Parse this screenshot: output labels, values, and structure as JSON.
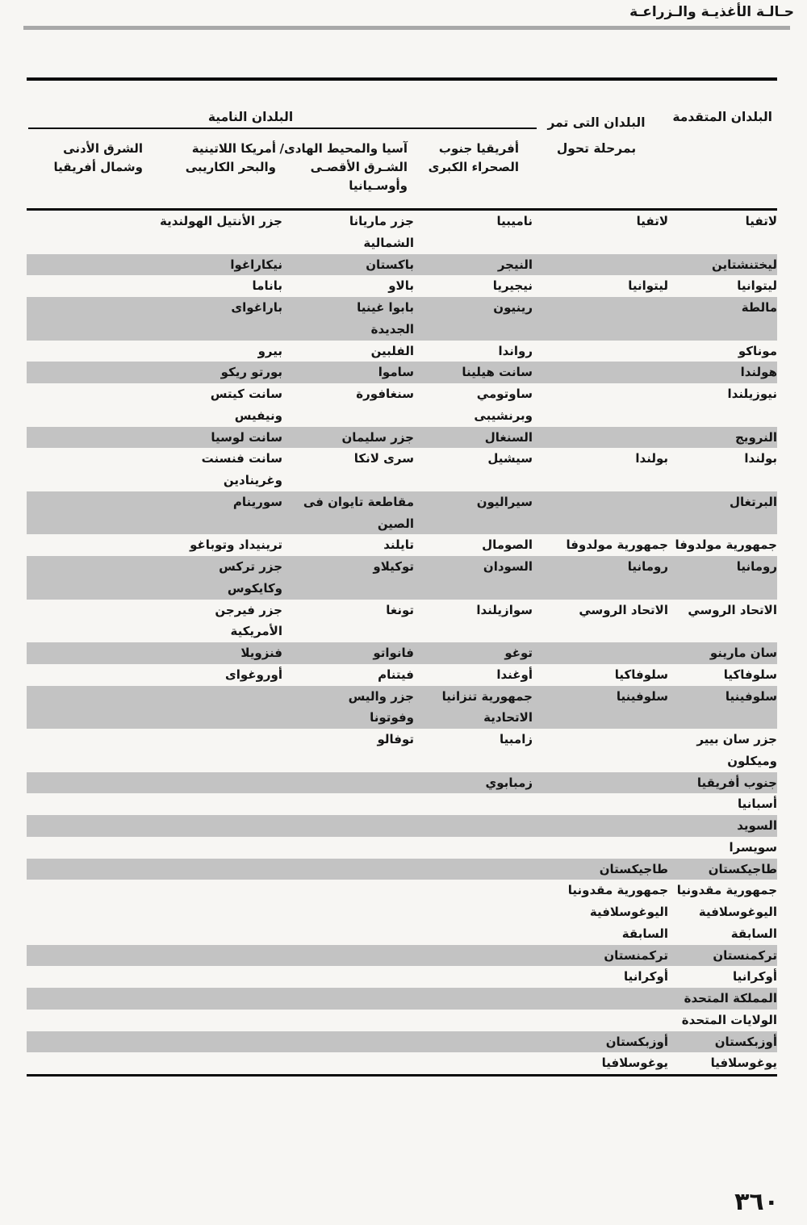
{
  "page": {
    "header_title": "حـالـة الأغذيـة والـزراعـة",
    "page_number": "٣٦٠"
  },
  "table": {
    "col_developed": "البلدان المتقدمة",
    "col_transition": "البلدان التى تمر\nبمرحلة تحول",
    "group_developing": "البلدان النامية",
    "sub_africa": "أفريقيا جنوب\nالصحراء الكبرى",
    "sub_asia": "آسيا والمحيط الهادى/\nالشـرق الأقصـى\nوأوسـيانيا",
    "sub_latam": "أمريكا اللاتينية\nوالبحر الكاريبى",
    "sub_neareast": "الشرق الأدنى\nوشمال أفريقيا",
    "rows": [
      {
        "developed": "لاتفيا",
        "transition": "لاتفيا",
        "africa": "ناميبيا",
        "asia": "جزر ماريانا\nالشمالية",
        "latam": "جزر الأنتيل الهولندية",
        "neareast": ""
      },
      {
        "developed": "ليختنشتاين",
        "transition": "",
        "africa": "النيجر",
        "asia": "باكستان",
        "latam": "نيكاراغوا",
        "neareast": ""
      },
      {
        "developed": "ليتوانيا",
        "transition": "ليتوانيا",
        "africa": "نيجيريا",
        "asia": "بالاو",
        "latam": "باناما",
        "neareast": ""
      },
      {
        "developed": "مالطة",
        "transition": "",
        "africa": "رينيون",
        "asia": "بابوا غينيا\nالجديدة",
        "latam": "باراغواى",
        "neareast": ""
      },
      {
        "developed": "موناكو",
        "transition": "",
        "africa": "رواندا",
        "asia": "الفلبين",
        "latam": "بيرو",
        "neareast": ""
      },
      {
        "developed": "هولندا",
        "transition": "",
        "africa": "سانت هيلينا",
        "asia": "ساموا",
        "latam": "بورتو ريكو",
        "neareast": ""
      },
      {
        "developed": "نيوزيلندا",
        "transition": "",
        "africa": "ساوتومي\nوبرنشيبى",
        "asia": "سنغافورة",
        "latam": "سانت كيتس\nونيفيس",
        "neareast": ""
      },
      {
        "developed": "النرويج",
        "transition": "",
        "africa": "السنغال",
        "asia": "جزر سليمان",
        "latam": "سانت لوسيا",
        "neareast": ""
      },
      {
        "developed": "بولندا",
        "transition": "بولندا",
        "africa": "سيشيل",
        "asia": "سرى لانكا",
        "latam": "سانت فنسنت\nوغرينادين",
        "neareast": ""
      },
      {
        "developed": "البرتغال",
        "transition": "",
        "africa": "سيراليون",
        "asia": "مقاطعة تايوان فى\nالصين",
        "latam": "سورينام",
        "neareast": ""
      },
      {
        "developed": "جمهورية مولدوفا",
        "transition": "جمهورية مولدوفا",
        "africa": "الصومال",
        "asia": "تايلند",
        "latam": "ترينيداد وتوباغو",
        "neareast": ""
      },
      {
        "developed": "رومانيا",
        "transition": "رومانيا",
        "africa": "السودان",
        "asia": "توكيلاو",
        "latam": "جزر تركس\nوكايكوس",
        "neareast": ""
      },
      {
        "developed": "الاتحاد الروسي",
        "transition": "الاتحاد الروسي",
        "africa": "سوازيلندا",
        "asia": "تونغا",
        "latam": "جزر فيرجن\nالأمريكية",
        "neareast": ""
      },
      {
        "developed": "سان مارينو",
        "transition": "",
        "africa": "توغو",
        "asia": "فانواتو",
        "latam": "فنزويلا",
        "neareast": ""
      },
      {
        "developed": "سلوفاكيا",
        "transition": "سلوفاكيا",
        "africa": "أوغندا",
        "asia": "فيتنام",
        "latam": "أوروغواى",
        "neareast": ""
      },
      {
        "developed": "سلوفينيا",
        "transition": "سلوفينيا",
        "africa": "جمهورية تنزانيا\nالاتحادية",
        "asia": "جزر واليس\nوفوتونا",
        "latam": "",
        "neareast": ""
      },
      {
        "developed": "جزر سان بيير\nوميكلون",
        "transition": "",
        "africa": "زامبيا",
        "asia": "توفالو",
        "latam": "",
        "neareast": ""
      },
      {
        "developed": "جنوب أفريقيا",
        "transition": "",
        "africa": "زمبابوي",
        "asia": "",
        "latam": "",
        "neareast": ""
      },
      {
        "developed": "أسبانيا",
        "transition": "",
        "africa": "",
        "asia": "",
        "latam": "",
        "neareast": ""
      },
      {
        "developed": "السويد",
        "transition": "",
        "africa": "",
        "asia": "",
        "latam": "",
        "neareast": ""
      },
      {
        "developed": "سويسرا",
        "transition": "",
        "africa": "",
        "asia": "",
        "latam": "",
        "neareast": ""
      },
      {
        "developed": "طاجيكستان",
        "transition": "طاجيكستان",
        "africa": "",
        "asia": "",
        "latam": "",
        "neareast": ""
      },
      {
        "developed": "جمهورية مقدونيا\nاليوغوسلافية\nالسابقة",
        "transition": "جمهورية مقدونيا\nاليوغوسلافية\nالسابقة",
        "africa": "",
        "asia": "",
        "latam": "",
        "neareast": ""
      },
      {
        "developed": "تركمنستان",
        "transition": "تركمنستان",
        "africa": "",
        "asia": "",
        "latam": "",
        "neareast": ""
      },
      {
        "developed": "أوكرانيا",
        "transition": "أوكرانيا",
        "africa": "",
        "asia": "",
        "latam": "",
        "neareast": ""
      },
      {
        "developed": "المملكة المتحدة",
        "transition": "",
        "africa": "",
        "asia": "",
        "latam": "",
        "neareast": ""
      },
      {
        "developed": "الولايات المتحدة",
        "transition": "",
        "africa": "",
        "asia": "",
        "latam": "",
        "neareast": ""
      },
      {
        "developed": "أوزبكستان",
        "transition": "أوزبكستان",
        "africa": "",
        "asia": "",
        "latam": "",
        "neareast": ""
      },
      {
        "developed": "يوغوسلافيا",
        "transition": "يوغوسلافيا",
        "africa": "",
        "asia": "",
        "latam": "",
        "neareast": ""
      }
    ]
  }
}
